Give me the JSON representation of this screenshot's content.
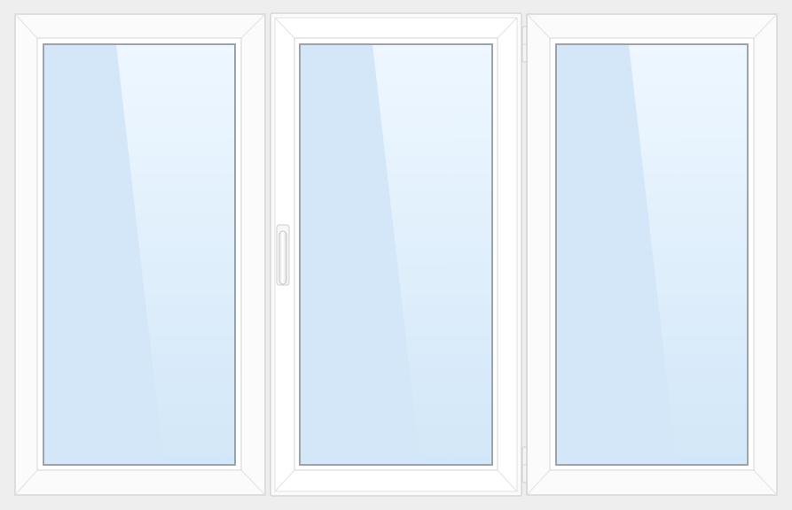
{
  "window": {
    "colors": {
      "background": "#eeeeee",
      "frame_face": "#fbfbfb",
      "frame_edge": "#d6d6d6",
      "frame_bevel": "#e3e3e3",
      "sash_face": "#ffffff",
      "glass_top": "#eef7ff",
      "glass_bottom": "#d2e7f8",
      "glass_shade": "#d3e7f8",
      "glass_border": "#9aa4ae",
      "handle": "#ffffff",
      "hinge": "#f4f4f4"
    },
    "panes": [
      {
        "name": "left-fixed-pane",
        "type": "fixed",
        "handle": false,
        "hinges": false
      },
      {
        "name": "center-casement-pane",
        "type": "opening-sash",
        "handle": true,
        "handle_side": "left",
        "hinges": true,
        "hinge_side": "right"
      },
      {
        "name": "right-fixed-pane",
        "type": "fixed",
        "handle": false,
        "hinges": false
      }
    ]
  }
}
